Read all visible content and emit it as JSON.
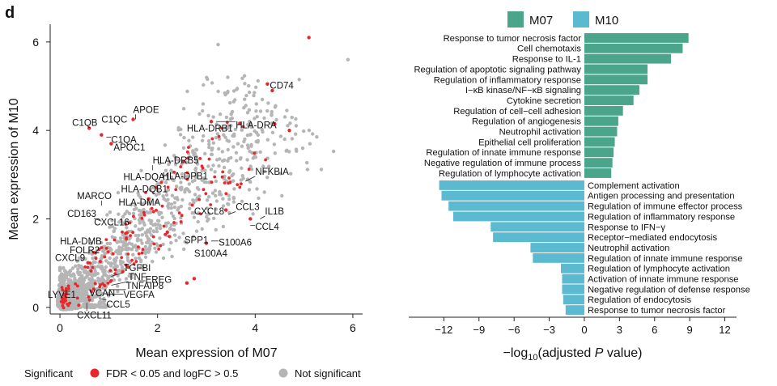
{
  "panel_label": "d",
  "colors": {
    "significant": "#e8262b",
    "not_significant": "#b5b5b5",
    "m07": "#4aa58a",
    "m10": "#5bbad0",
    "axis": "#222222"
  },
  "chart_data": [
    {
      "type": "scatter",
      "xlabel": "Mean expression of M07",
      "ylabel": "Mean expression of M10",
      "xlim": [
        -0.2,
        6.2
      ],
      "ylim": [
        -0.15,
        6.4
      ],
      "xticks": [
        0,
        2,
        4,
        6
      ],
      "yticks": [
        0,
        2,
        4,
        6
      ],
      "legend": {
        "title": "Significant",
        "items": [
          {
            "label": "FDR < 0.05 and logFC > 0.5",
            "color": "#e8262b"
          },
          {
            "label": "Not significant",
            "color": "#b5b5b5"
          }
        ]
      },
      "highlight_points": [
        {
          "x": 5.1,
          "y": 6.1,
          "sig": true
        },
        {
          "x": 5.9,
          "y": 5.6,
          "sig": false
        },
        {
          "x": 4.9,
          "y": 5.15,
          "sig": false
        },
        {
          "x": 4.25,
          "y": 5.05,
          "sig": true
        },
        {
          "x": 4.35,
          "y": 4.9,
          "sig": true
        },
        {
          "x": 4.7,
          "y": 4.0,
          "sig": true
        },
        {
          "x": 4.4,
          "y": 4.15,
          "sig": true
        },
        {
          "x": 3.1,
          "y": 4.2,
          "sig": true
        },
        {
          "x": 1.5,
          "y": 4.25,
          "sig": true
        },
        {
          "x": 0.6,
          "y": 4.05,
          "sig": true
        },
        {
          "x": 0.85,
          "y": 3.9,
          "sig": true
        },
        {
          "x": 1.05,
          "y": 3.7,
          "sig": true
        },
        {
          "x": 3.9,
          "y": 2.0,
          "sig": true
        },
        {
          "x": 3.4,
          "y": 2.2,
          "sig": true
        },
        {
          "x": 3.0,
          "y": 1.45,
          "sig": true
        },
        {
          "x": 2.6,
          "y": 0.55,
          "sig": true
        },
        {
          "x": 2.75,
          "y": 0.65,
          "sig": true
        },
        {
          "x": 2.2,
          "y": 1.7,
          "sig": true
        }
      ],
      "labels": [
        {
          "text": "CD74",
          "x": 4.3,
          "y": 4.95,
          "px": 4.3,
          "py": 5.05
        },
        {
          "text": "APOE",
          "x": 1.5,
          "y": 4.4,
          "px": 1.55,
          "py": 4.25
        },
        {
          "text": "C1QC",
          "x": 0.85,
          "y": 4.18,
          "px": 0.85,
          "py": 4.05
        },
        {
          "text": "C1QB",
          "x": 0.25,
          "y": 4.1,
          "px": 0.6,
          "py": 4.05
        },
        {
          "text": "HLA-DRA",
          "x": 3.6,
          "y": 4.05,
          "px": 3.2,
          "py": 4.2
        },
        {
          "text": "HLA-DRB1",
          "x": 2.6,
          "y": 3.98,
          "px": 3.05,
          "py": 4.05
        },
        {
          "text": "C1QA",
          "x": 1.05,
          "y": 3.72,
          "px": 0.95,
          "py": 3.85
        },
        {
          "text": "APOC1",
          "x": 1.1,
          "y": 3.55,
          "px": 1.05,
          "py": 3.7
        },
        {
          "text": "HLA-DRB5",
          "x": 1.9,
          "y": 3.25,
          "px": 1.9,
          "py": 3.1
        },
        {
          "text": "HLA-DPB1",
          "x": 2.1,
          "y": 2.9,
          "px": 2.25,
          "py": 3.05
        },
        {
          "text": "NFKBIA",
          "x": 4.0,
          "y": 3.0,
          "px": 3.8,
          "py": 2.85
        },
        {
          "text": "HLA-DQA1",
          "x": 1.3,
          "y": 2.88,
          "px": 1.8,
          "py": 3.0
        },
        {
          "text": "HLA-DQB1",
          "x": 1.25,
          "y": 2.6,
          "px": 1.8,
          "py": 2.7
        },
        {
          "text": "HLA-DMA",
          "x": 1.2,
          "y": 2.3,
          "px": 1.75,
          "py": 2.45
        },
        {
          "text": "MARCO",
          "x": 0.35,
          "y": 2.45,
          "px": 0.85,
          "py": 2.3
        },
        {
          "text": "CCL3",
          "x": 3.6,
          "y": 2.2,
          "px": 3.45,
          "py": 2.1
        },
        {
          "text": "IL1B",
          "x": 4.2,
          "y": 2.1,
          "px": 4.1,
          "py": 2.0
        },
        {
          "text": "CXCL8",
          "x": 2.75,
          "y": 2.1,
          "px": 2.9,
          "py": 2.25
        },
        {
          "text": "CD163",
          "x": 0.15,
          "y": 2.05,
          "px": 0.85,
          "py": 1.95
        },
        {
          "text": "CXCL16",
          "x": 0.7,
          "y": 1.85,
          "px": 0.85,
          "py": 1.75
        },
        {
          "text": "CCL4",
          "x": 4.0,
          "y": 1.75,
          "px": 3.9,
          "py": 1.85
        },
        {
          "text": "SPP1",
          "x": 2.55,
          "y": 1.45,
          "px": 2.7,
          "py": 1.6
        },
        {
          "text": "S100A6",
          "x": 3.25,
          "y": 1.4,
          "px": 3.1,
          "py": 1.5
        },
        {
          "text": "HLA-DMB",
          "x": 0.0,
          "y": 1.42,
          "px": 0.65,
          "py": 1.35
        },
        {
          "text": "FOLR2",
          "x": 0.2,
          "y": 1.22,
          "px": 0.6,
          "py": 1.2
        },
        {
          "text": "S100A4",
          "x": 2.75,
          "y": 1.15,
          "px": 3.05,
          "py": 1.3
        },
        {
          "text": "CXCL9",
          "x": -0.1,
          "y": 1.05,
          "px": 0.35,
          "py": 0.95
        },
        {
          "text": "TGFBI",
          "x": 1.3,
          "y": 0.82,
          "px": 1.05,
          "py": 0.7
        },
        {
          "text": "TNF",
          "x": 1.4,
          "y": 0.62,
          "px": 1.05,
          "py": 0.5
        },
        {
          "text": "TNFAIP8",
          "x": 1.35,
          "y": 0.42,
          "px": 1.0,
          "py": 0.4
        },
        {
          "text": "EREG",
          "x": 1.75,
          "y": 0.55,
          "px": 1.6,
          "py": 0.6
        },
        {
          "text": "VEGFA",
          "x": 1.3,
          "y": 0.22,
          "px": 0.95,
          "py": 0.3
        },
        {
          "text": "LYVE1",
          "x": -0.25,
          "y": 0.22,
          "px": 0.3,
          "py": 0.4
        },
        {
          "text": "VCAN",
          "x": 0.6,
          "y": 0.25,
          "px": 0.8,
          "py": 0.35
        },
        {
          "text": "CCL5",
          "x": 0.95,
          "y": 0.0,
          "px": 0.8,
          "py": 0.2
        },
        {
          "text": "CXCL11",
          "x": 0.35,
          "y": -0.25,
          "px": 0.55,
          "py": 0.1
        }
      ]
    },
    {
      "type": "bar",
      "orientation": "horizontal",
      "xlabel": "−log10(adjusted P value)",
      "xlabel_parts": [
        "−log",
        "10",
        "(adjusted ",
        "P",
        " value)"
      ],
      "xlim": [
        -15,
        13
      ],
      "xticks": [
        -12,
        -9,
        -6,
        -3,
        0,
        3,
        6,
        9,
        12
      ],
      "xtick_labels": [
        "−12",
        "−9",
        "−6",
        "−3",
        "0",
        "3",
        "6",
        "9",
        "12"
      ],
      "legend": [
        {
          "label": "M07",
          "color": "#4aa58a"
        },
        {
          "label": "M10",
          "color": "#5bbad0"
        }
      ],
      "series": [
        {
          "name": "M07",
          "categories": [
            "Response to tumor necrosis factor",
            "Cell chemotaxis",
            "Response to IL-1",
            "Regulation of apoptotic signaling pathway",
            "Regulation of inflammatory response",
            "I−κB kinase/NF−κB signaling",
            "Cytokine secretion",
            "Regulation of cell−cell adhesion",
            "Regulation of angiogenesis",
            "Neutrophil activation",
            "Epithelial cell proliferation",
            "Regulation of innate immune response",
            "Negative regulation of immune process",
            "Regulation of lymphocyte activation"
          ],
          "values": [
            8.9,
            8.4,
            7.4,
            5.4,
            5.4,
            4.7,
            4.2,
            3.3,
            2.9,
            2.8,
            2.6,
            2.5,
            2.4,
            2.3
          ]
        },
        {
          "name": "M10",
          "categories": [
            "Complement activation",
            "Antigen processing and presentation",
            "Regulation of immune effector process",
            "Regulation of inflammatory response",
            "Response to IFN−γ",
            "Receptor−mediated endocytosis",
            "Neutrophil activation",
            "Regulation of innate immune response",
            "Regulation of lymphocyte activation",
            "Activation of innate immune response",
            "Negative regulation of defense response",
            "Regulation of endocytosis",
            "Response to tumor necrosis factor"
          ],
          "values": [
            -12.4,
            -12.2,
            -11.6,
            -11.2,
            -8.0,
            -7.8,
            -4.6,
            -4.4,
            -2.0,
            -1.9,
            -1.9,
            -1.8,
            -1.6
          ]
        }
      ]
    }
  ]
}
